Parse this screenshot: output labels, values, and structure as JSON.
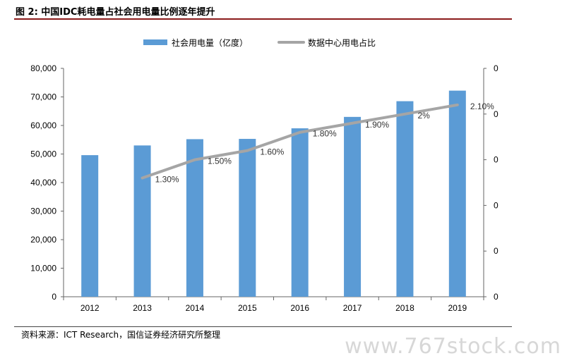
{
  "figure": {
    "title": "图 2:   中国IDC耗电量占社会用电量比例逐年提升",
    "source": "资料来源：ICT Research，国信证券经济研究所整理",
    "watermark": "www.767stock.com"
  },
  "chart_data": {
    "type": "bar",
    "categories": [
      "2012",
      "2013",
      "2014",
      "2015",
      "2016",
      "2017",
      "2018",
      "2019"
    ],
    "series": [
      {
        "name": "社会用电量（亿度）",
        "type": "bar",
        "axis": "left",
        "color": "#5b9bd5",
        "values": [
          49600,
          53000,
          55200,
          55300,
          59000,
          63000,
          68500,
          72200
        ]
      },
      {
        "name": "数据中心用电占比",
        "type": "line",
        "axis": "right",
        "color": "#a5a5a5",
        "values": [
          null,
          1.3,
          1.5,
          1.6,
          1.8,
          1.9,
          2.0,
          2.1
        ],
        "labels": [
          "",
          "1.30%",
          "1.50%",
          "1.60%",
          "1.80%",
          "1.90%",
          "2%",
          "2.10%"
        ]
      }
    ],
    "y_left": {
      "ylim": [
        0,
        80000
      ],
      "ticks": [
        "0",
        "10,000",
        "20,000",
        "30,000",
        "40,000",
        "50,000",
        "60,000",
        "70,000",
        "80,000"
      ]
    },
    "y_right": {
      "ylim": [
        0,
        2.5
      ],
      "ticks": [
        "0",
        "0",
        "0",
        "0",
        "0",
        "0"
      ]
    },
    "legend_position": "top",
    "grid": false
  }
}
